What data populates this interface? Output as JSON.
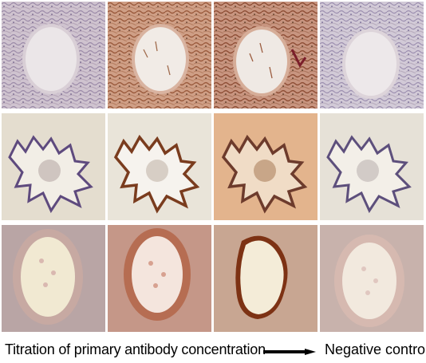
{
  "figure": {
    "rows": [
      {
        "tissue": "tissue-section-row-1"
      },
      {
        "tissue": "tissue-section-row-2"
      },
      {
        "tissue": "tissue-section-row-3"
      }
    ],
    "columns": 4
  },
  "caption": {
    "left_text": "Titration of primary antibody concentration",
    "right_text": "Negative control"
  },
  "colors": {
    "background": "#ffffff",
    "arrow": "#000000",
    "hematoxylin": "#8e7fa6",
    "dab_light": "#c49372",
    "dab_dark": "#6a2a10"
  }
}
